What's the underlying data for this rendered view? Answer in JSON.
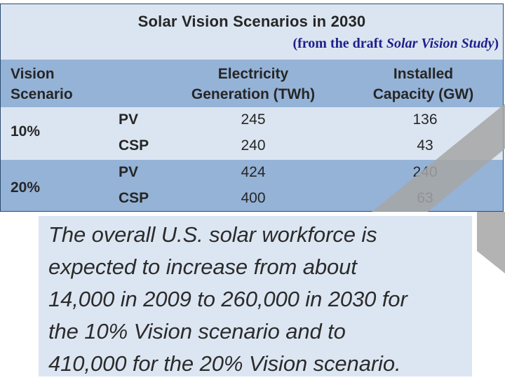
{
  "table": {
    "title": "Solar Vision Scenarios in 2030",
    "subtitle_prefix": "(from the draft ",
    "subtitle_italic": "Solar Vision Study",
    "subtitle_suffix": ")",
    "headers": {
      "col1_line1": "Vision",
      "col1_line2": "Scenario",
      "col2_line1": "Electricity",
      "col2_line2": "Generation (TWh)",
      "col3_line1": "Installed",
      "col3_line2": "Capacity (GW)"
    },
    "groups": [
      {
        "scenario": "10%",
        "rows": [
          {
            "tech": "PV",
            "generation": "245",
            "capacity": "136"
          },
          {
            "tech": "CSP",
            "generation": "240",
            "capacity": "43"
          }
        ]
      },
      {
        "scenario": "20%",
        "rows": [
          {
            "tech": "PV",
            "generation": "424",
            "capacity": "240"
          },
          {
            "tech": "CSP",
            "generation": "400",
            "capacity": "63"
          }
        ]
      }
    ]
  },
  "callout": {
    "line1": "The overall U.S. solar workforce is",
    "line2": "expected to increase from about",
    "line3": "14,000 in 2009 to 260,000 in 2030 for",
    "line4": "the 10% Vision scenario and to",
    "line5": "410,000 for the 20% Vision scenario."
  },
  "colors": {
    "title_band": "#dbe5f1",
    "header_band": "#95b3d7",
    "subtitle_text": "#1f1f8a",
    "chevron": "#a6a6a6"
  }
}
